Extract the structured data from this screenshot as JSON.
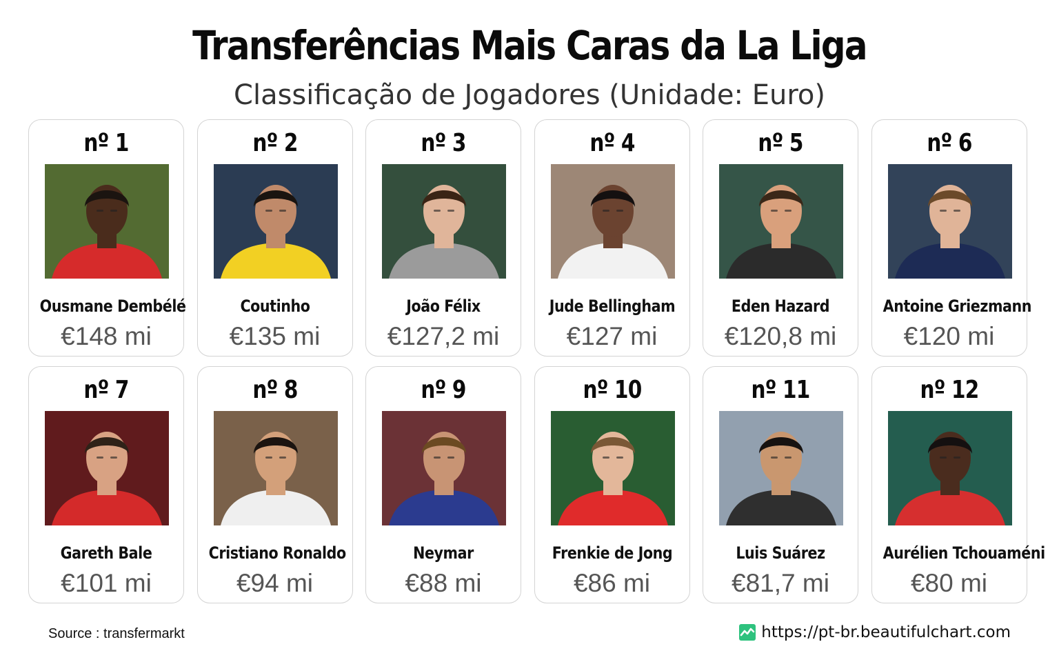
{
  "header": {
    "title": "Transferências Mais Caras da La Liga",
    "subtitle": "Classificação de Jogadores (Unidade: Euro)"
  },
  "chart_data": {
    "type": "table",
    "title": "Transferências Mais Caras da La Liga",
    "subtitle": "Classificação de Jogadores (Unidade: Euro)",
    "players": [
      {
        "rank": "nº 1",
        "name": "Ousmane Dembélé",
        "value_label": "€148 mi",
        "value": 148,
        "bg": "#5f7a3a",
        "shirt": "#d62b2b",
        "skin": "#4a2c1c",
        "hair": "#1b1410"
      },
      {
        "rank": "nº 2",
        "name": "Coutinho",
        "value_label": "€135 mi",
        "value": 135,
        "bg": "#31455f",
        "shirt": "#f2d023",
        "skin": "#c08a6a",
        "hair": "#1a1410"
      },
      {
        "rank": "nº 3",
        "name": "João Félix",
        "value_label": "€127,2 mi",
        "value": 127.2,
        "bg": "#3c5a46",
        "shirt": "#9b9b9b",
        "skin": "#e0b59a",
        "hair": "#3a2415"
      },
      {
        "rank": "nº 4",
        "name": "Jude Bellingham",
        "value_label": "€127 mi",
        "value": 127,
        "bg": "#b39a87",
        "shirt": "#f2f2f2",
        "skin": "#6b4330",
        "hair": "#141010"
      },
      {
        "rank": "nº 5",
        "name": "Eden Hazard",
        "value_label": "€120,8 mi",
        "value": 120.8,
        "bg": "#3d6152",
        "shirt": "#2b2b2b",
        "skin": "#d9a07c",
        "hair": "#3a2718"
      },
      {
        "rank": "nº 6",
        "name": "Antoine Griezmann",
        "value_label": "€120 mi",
        "value": 120,
        "bg": "#3a4d66",
        "shirt": "#1d2b55",
        "skin": "#e0b498",
        "hair": "#6b4a2a"
      },
      {
        "rank": "nº 7",
        "name": "Gareth Bale",
        "value_label": "€101 mi",
        "value": 101,
        "bg": "#6e1f22",
        "shirt": "#d42a2a",
        "skin": "#d8a283",
        "hair": "#2f2218"
      },
      {
        "rank": "nº 8",
        "name": "Cristiano Ronaldo",
        "value_label": "€94 mi",
        "value": 94,
        "bg": "#8b6f55",
        "shirt": "#efefef",
        "skin": "#d3a07a",
        "hair": "#1b1410"
      },
      {
        "rank": "nº 9",
        "name": "Neymar",
        "value_label": "€88 mi",
        "value": 88,
        "bg": "#7a3a3e",
        "shirt": "#2b3b8f",
        "skin": "#c89474",
        "hair": "#6b4a22"
      },
      {
        "rank": "nº 10",
        "name": "Frenkie de Jong",
        "value_label": "€86 mi",
        "value": 86,
        "bg": "#2f6a3a",
        "shirt": "#e02b2b",
        "skin": "#e3b79a",
        "hair": "#7a5836"
      },
      {
        "rank": "nº 11",
        "name": "Luis Suárez",
        "value_label": "€81,7 mi",
        "value": 81.7,
        "bg": "#a7b7c8",
        "shirt": "#2f2f2f",
        "skin": "#c9976f",
        "hair": "#161210"
      },
      {
        "rank": "nº 12",
        "name": "Aurélien Tchouaméni",
        "value_label": "€80 mi",
        "value": 80,
        "bg": "#2a6a5a",
        "shirt": "#d62f2f",
        "skin": "#4a2c1e",
        "hair": "#141010"
      }
    ]
  },
  "footer": {
    "source": "Source : transfermarkt",
    "site": "https://pt-br.beautifulchart.com",
    "logo_color": "#2ec27e"
  }
}
